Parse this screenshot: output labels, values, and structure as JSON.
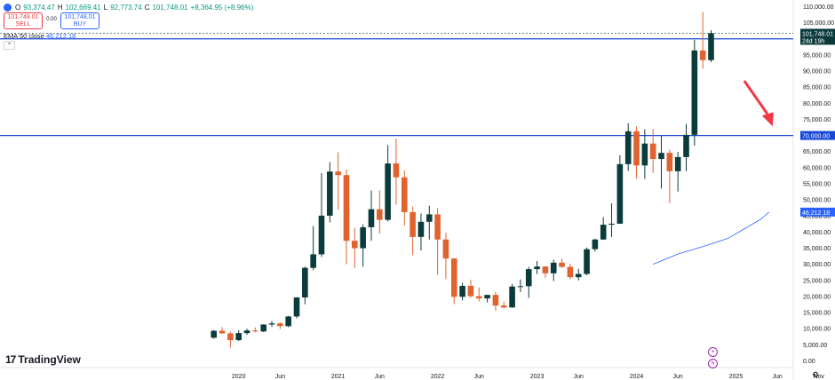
{
  "header": {
    "ohlc": [
      {
        "label": "O",
        "value": "93,374.47"
      },
      {
        "label": "H",
        "value": "102,669.41"
      },
      {
        "label": "L",
        "value": "92,773.74"
      },
      {
        "label": "C",
        "value": "101,748.01"
      }
    ],
    "change": "+8,364.95 (+8.96%)",
    "sell": {
      "price": "101,748.01",
      "label": "SELL"
    },
    "spread": "0.00",
    "buy": {
      "price": "101,748.01",
      "label": "BUY"
    },
    "ema_label": "EMA 50 close",
    "ema_value": "46,212.18"
  },
  "brand": {
    "name": "TradingView",
    "mark": "17"
  },
  "colors": {
    "up": "#0c3b3c",
    "down": "#e0622e",
    "ema": "#2962ff",
    "hline": "#1848d6",
    "arrow": "#f23645"
  },
  "chart_data": {
    "type": "candlestick",
    "interval": "1M",
    "y_scale": "linear",
    "ylim": [
      0,
      110000
    ],
    "y_ticks": [
      "110,000.00",
      "105,000.00",
      "100,000.00",
      "95,000.00",
      "90,000.00",
      "85,000.00",
      "80,000.00",
      "75,000.00",
      "70,000.00",
      "65,000.00",
      "60,000.00",
      "55,000.00",
      "50,000.00",
      "45,000.00",
      "40,000.00",
      "35,000.00",
      "30,000.00",
      "25,000.00",
      "20,000.00",
      "15,000.00",
      "10,000.00",
      "5,000.00",
      "0.00"
    ],
    "x_ticks": [
      {
        "label": "2020",
        "index": 3
      },
      {
        "label": "Jun",
        "index": 8
      },
      {
        "label": "2021",
        "index": 15
      },
      {
        "label": "Jun",
        "index": 20
      },
      {
        "label": "2022",
        "index": 27
      },
      {
        "label": "Jun",
        "index": 32
      },
      {
        "label": "2023",
        "index": 39
      },
      {
        "label": "Jun",
        "index": 44
      },
      {
        "label": "2024",
        "index": 51
      },
      {
        "label": "Jun",
        "index": 56
      },
      {
        "label": "2025",
        "index": 63
      },
      {
        "label": "Jun",
        "index": 68
      },
      {
        "label": "Nov",
        "index": 73
      }
    ],
    "candles": [
      {
        "o": 7200,
        "h": 9600,
        "l": 6900,
        "c": 9350
      },
      {
        "o": 9350,
        "h": 10500,
        "l": 8400,
        "c": 8550
      },
      {
        "o": 8550,
        "h": 9200,
        "l": 4100,
        "c": 6450
      },
      {
        "o": 6450,
        "h": 9500,
        "l": 6200,
        "c": 8650
      },
      {
        "o": 8650,
        "h": 10000,
        "l": 8100,
        "c": 9450
      },
      {
        "o": 9450,
        "h": 10400,
        "l": 8900,
        "c": 9150
      },
      {
        "o": 9150,
        "h": 11400,
        "l": 8950,
        "c": 11300
      },
      {
        "o": 11300,
        "h": 12400,
        "l": 10600,
        "c": 11650
      },
      {
        "o": 11650,
        "h": 12000,
        "l": 9900,
        "c": 10800
      },
      {
        "o": 10800,
        "h": 14000,
        "l": 10500,
        "c": 13800
      },
      {
        "o": 13800,
        "h": 19800,
        "l": 13200,
        "c": 19700
      },
      {
        "o": 19700,
        "h": 29300,
        "l": 17600,
        "c": 28900
      },
      {
        "o": 28900,
        "h": 41900,
        "l": 28200,
        "c": 33100
      },
      {
        "o": 33100,
        "h": 58300,
        "l": 32300,
        "c": 45100
      },
      {
        "o": 45100,
        "h": 61700,
        "l": 43000,
        "c": 58800
      },
      {
        "o": 58800,
        "h": 64800,
        "l": 47000,
        "c": 57700
      },
      {
        "o": 57700,
        "h": 59500,
        "l": 30000,
        "c": 37300
      },
      {
        "o": 37300,
        "h": 41300,
        "l": 28800,
        "c": 35000
      },
      {
        "o": 35000,
        "h": 42400,
        "l": 29300,
        "c": 41500
      },
      {
        "o": 41500,
        "h": 52900,
        "l": 37300,
        "c": 47100
      },
      {
        "o": 47100,
        "h": 52900,
        "l": 39600,
        "c": 43800
      },
      {
        "o": 43800,
        "h": 67000,
        "l": 43300,
        "c": 61300
      },
      {
        "o": 61300,
        "h": 69000,
        "l": 48500,
        "c": 57000
      },
      {
        "o": 57000,
        "h": 59100,
        "l": 42000,
        "c": 46200
      },
      {
        "o": 46200,
        "h": 47900,
        "l": 32900,
        "c": 38500
      },
      {
        "o": 38500,
        "h": 45800,
        "l": 34300,
        "c": 43200
      },
      {
        "o": 43200,
        "h": 48200,
        "l": 37700,
        "c": 45500
      },
      {
        "o": 45500,
        "h": 47400,
        "l": 26700,
        "c": 37700
      },
      {
        "o": 37700,
        "h": 39800,
        "l": 25400,
        "c": 31800
      },
      {
        "o": 31800,
        "h": 31900,
        "l": 17600,
        "c": 19900
      },
      {
        "o": 19900,
        "h": 24300,
        "l": 18800,
        "c": 23300
      },
      {
        "o": 23300,
        "h": 25200,
        "l": 19600,
        "c": 20100
      },
      {
        "o": 20100,
        "h": 22800,
        "l": 18500,
        "c": 19400
      },
      {
        "o": 19400,
        "h": 20500,
        "l": 18200,
        "c": 20500
      },
      {
        "o": 20500,
        "h": 21500,
        "l": 15500,
        "c": 17200
      },
      {
        "o": 17200,
        "h": 18400,
        "l": 16300,
        "c": 16600
      },
      {
        "o": 16600,
        "h": 23900,
        "l": 16500,
        "c": 23100
      },
      {
        "o": 23100,
        "h": 25300,
        "l": 21400,
        "c": 23200
      },
      {
        "o": 23200,
        "h": 29200,
        "l": 19600,
        "c": 28500
      },
      {
        "o": 28500,
        "h": 31000,
        "l": 27000,
        "c": 29300
      },
      {
        "o": 29300,
        "h": 29400,
        "l": 25800,
        "c": 27200
      },
      {
        "o": 27200,
        "h": 31400,
        "l": 24800,
        "c": 30500
      },
      {
        "o": 30500,
        "h": 31800,
        "l": 28900,
        "c": 29200
      },
      {
        "o": 29200,
        "h": 30200,
        "l": 25300,
        "c": 26000
      },
      {
        "o": 26000,
        "h": 28600,
        "l": 25000,
        "c": 27000
      },
      {
        "o": 27000,
        "h": 35200,
        "l": 26600,
        "c": 34700
      },
      {
        "o": 34700,
        "h": 38000,
        "l": 34000,
        "c": 37700
      },
      {
        "o": 37700,
        "h": 44700,
        "l": 37600,
        "c": 42300
      },
      {
        "o": 42300,
        "h": 48900,
        "l": 38500,
        "c": 42600
      },
      {
        "o": 42600,
        "h": 63900,
        "l": 42600,
        "c": 61100
      },
      {
        "o": 61100,
        "h": 73800,
        "l": 59000,
        "c": 71300
      },
      {
        "o": 71300,
        "h": 72800,
        "l": 56500,
        "c": 60700
      },
      {
        "o": 60700,
        "h": 71900,
        "l": 56500,
        "c": 67500
      },
      {
        "o": 67500,
        "h": 72000,
        "l": 58400,
        "c": 62700
      },
      {
        "o": 62700,
        "h": 70000,
        "l": 53500,
        "c": 64600
      },
      {
        "o": 64600,
        "h": 65600,
        "l": 49000,
        "c": 58900
      },
      {
        "o": 58900,
        "h": 64900,
        "l": 52600,
        "c": 63300
      },
      {
        "o": 63300,
        "h": 73600,
        "l": 58900,
        "c": 70200
      },
      {
        "o": 70200,
        "h": 99700,
        "l": 66800,
        "c": 96400
      },
      {
        "o": 96400,
        "h": 108300,
        "l": 90700,
        "c": 93400
      },
      {
        "o": 93400,
        "h": 102700,
        "l": 92800,
        "c": 101748
      }
    ],
    "ema50": [
      {
        "index": 53,
        "value": 30000
      },
      {
        "index": 56,
        "value": 33200
      },
      {
        "index": 59,
        "value": 35500
      },
      {
        "index": 62,
        "value": 38000
      },
      {
        "index": 64,
        "value": 41000
      },
      {
        "index": 66,
        "value": 44000
      },
      {
        "index": 67,
        "value": 46212
      }
    ],
    "horizontal_lines": [
      {
        "value": 100000,
        "label": "100,000.00"
      },
      {
        "value": 70000,
        "label": "70,000.00"
      }
    ],
    "price_labels": [
      {
        "value": 101748.01,
        "label": "101,748.01",
        "sublabel": "24d 19h"
      },
      {
        "value": 46212.18,
        "label": "46,212.18"
      }
    ],
    "annotation": {
      "type": "arrow",
      "from": {
        "index": 64,
        "value": 87000
      },
      "to": {
        "index": 67,
        "value": 74500
      }
    }
  }
}
